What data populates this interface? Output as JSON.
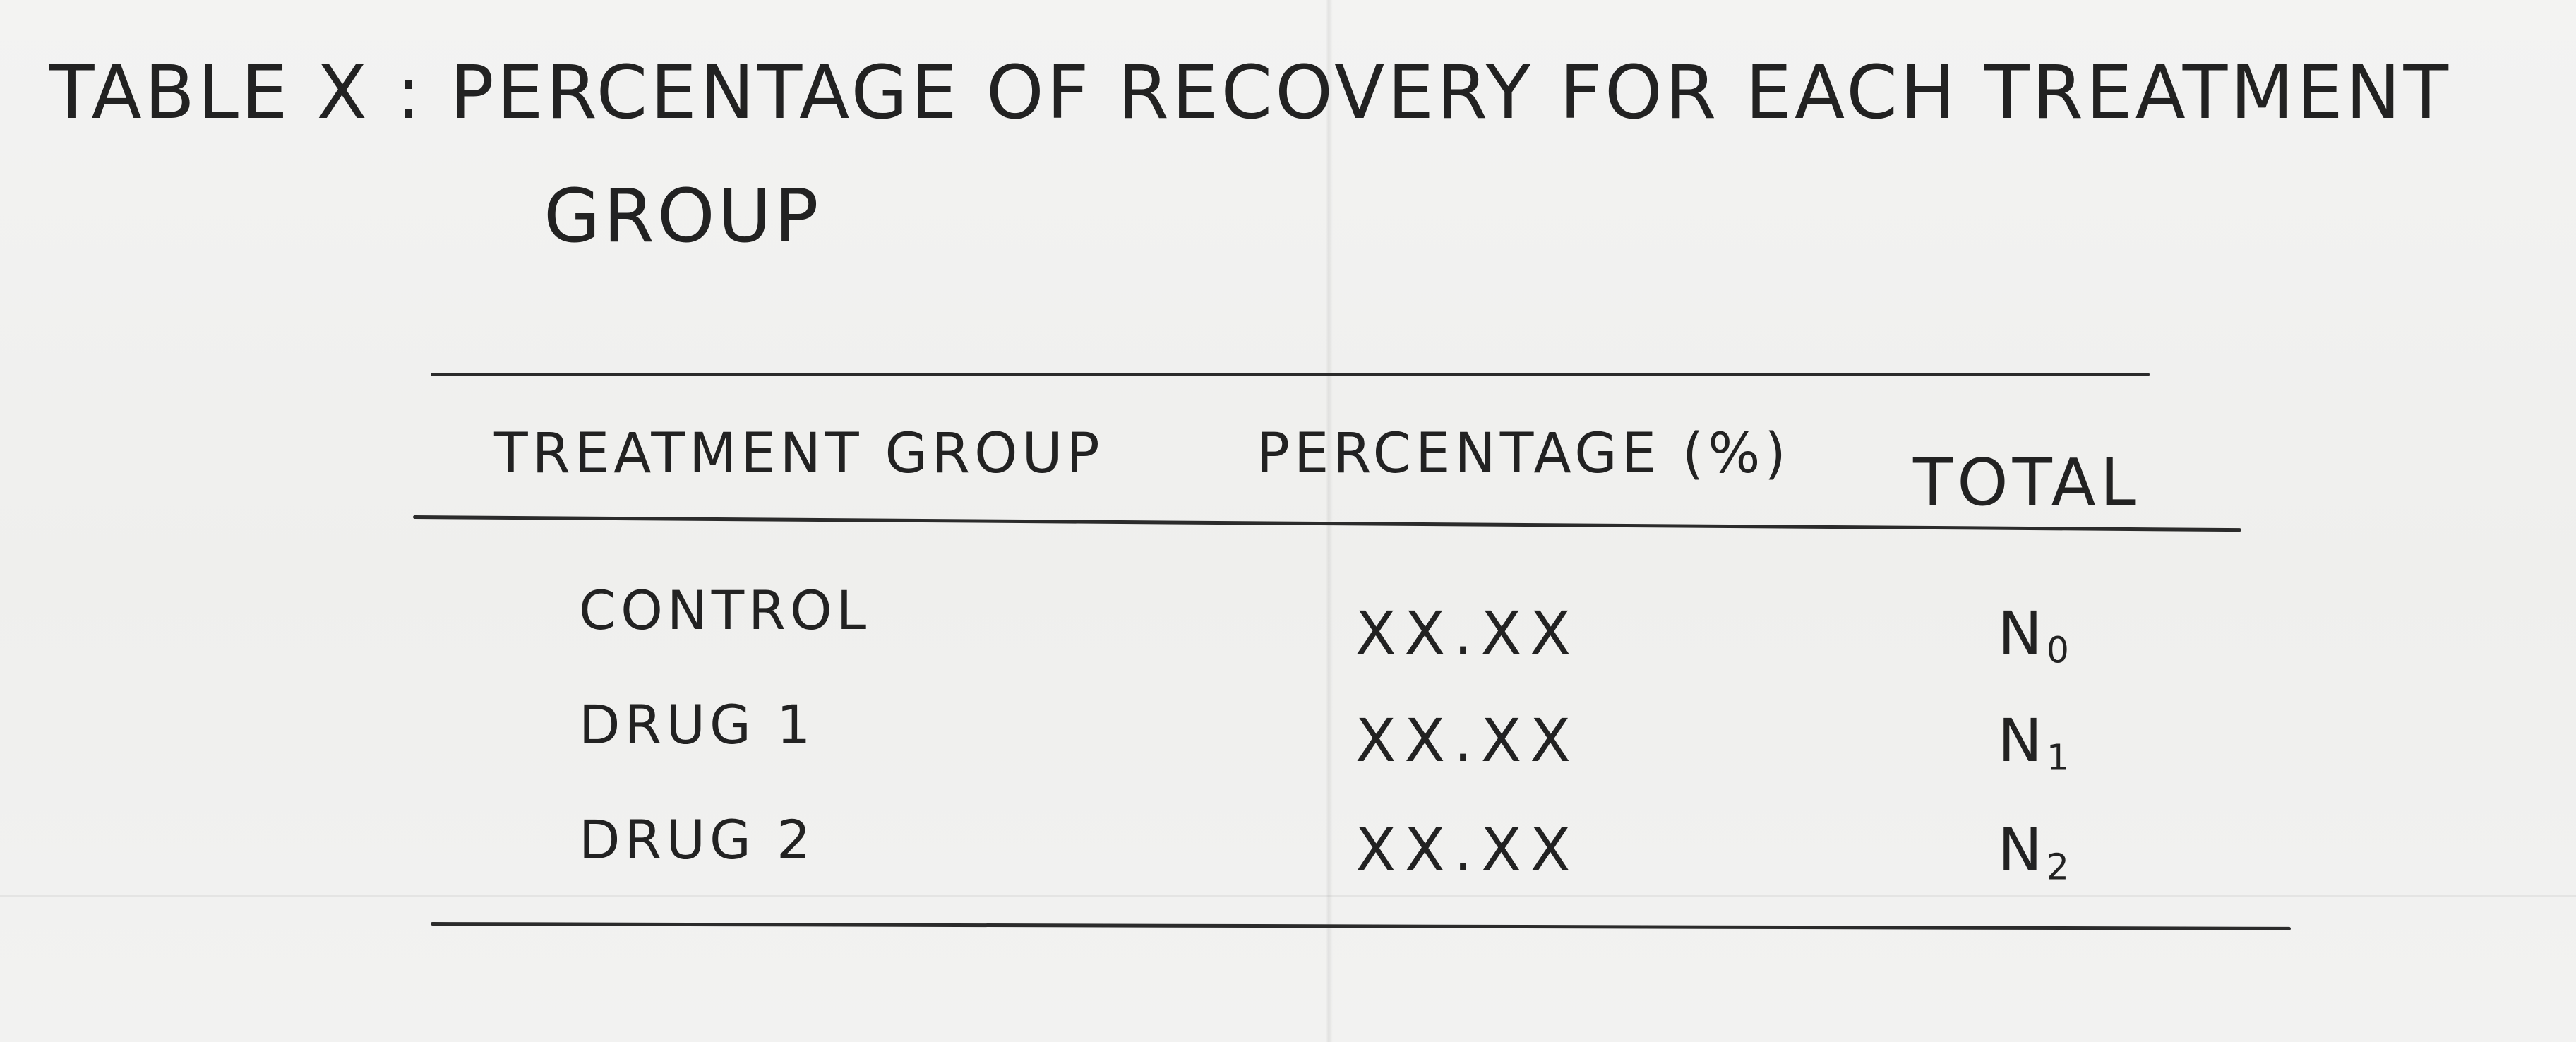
{
  "document": {
    "title": "TABLE X : PERCENTAGE OF RECOVERY FOR EACH TREATMENT",
    "title_continuation": "GROUP"
  },
  "table": {
    "headers": [
      "TREATMENT GROUP",
      "PERCENTAGE (%)",
      "TOTAL"
    ],
    "rows": [
      {
        "group": "CONTROL",
        "percentage": "XX.XX",
        "total_base": "N",
        "total_sub": "0"
      },
      {
        "group": "DRUG 1",
        "percentage": "XX.XX",
        "total_base": "N",
        "total_sub": "1"
      },
      {
        "group": "DRUG 2",
        "percentage": "XX.XX",
        "total_base": "N",
        "total_sub": "2"
      }
    ]
  }
}
